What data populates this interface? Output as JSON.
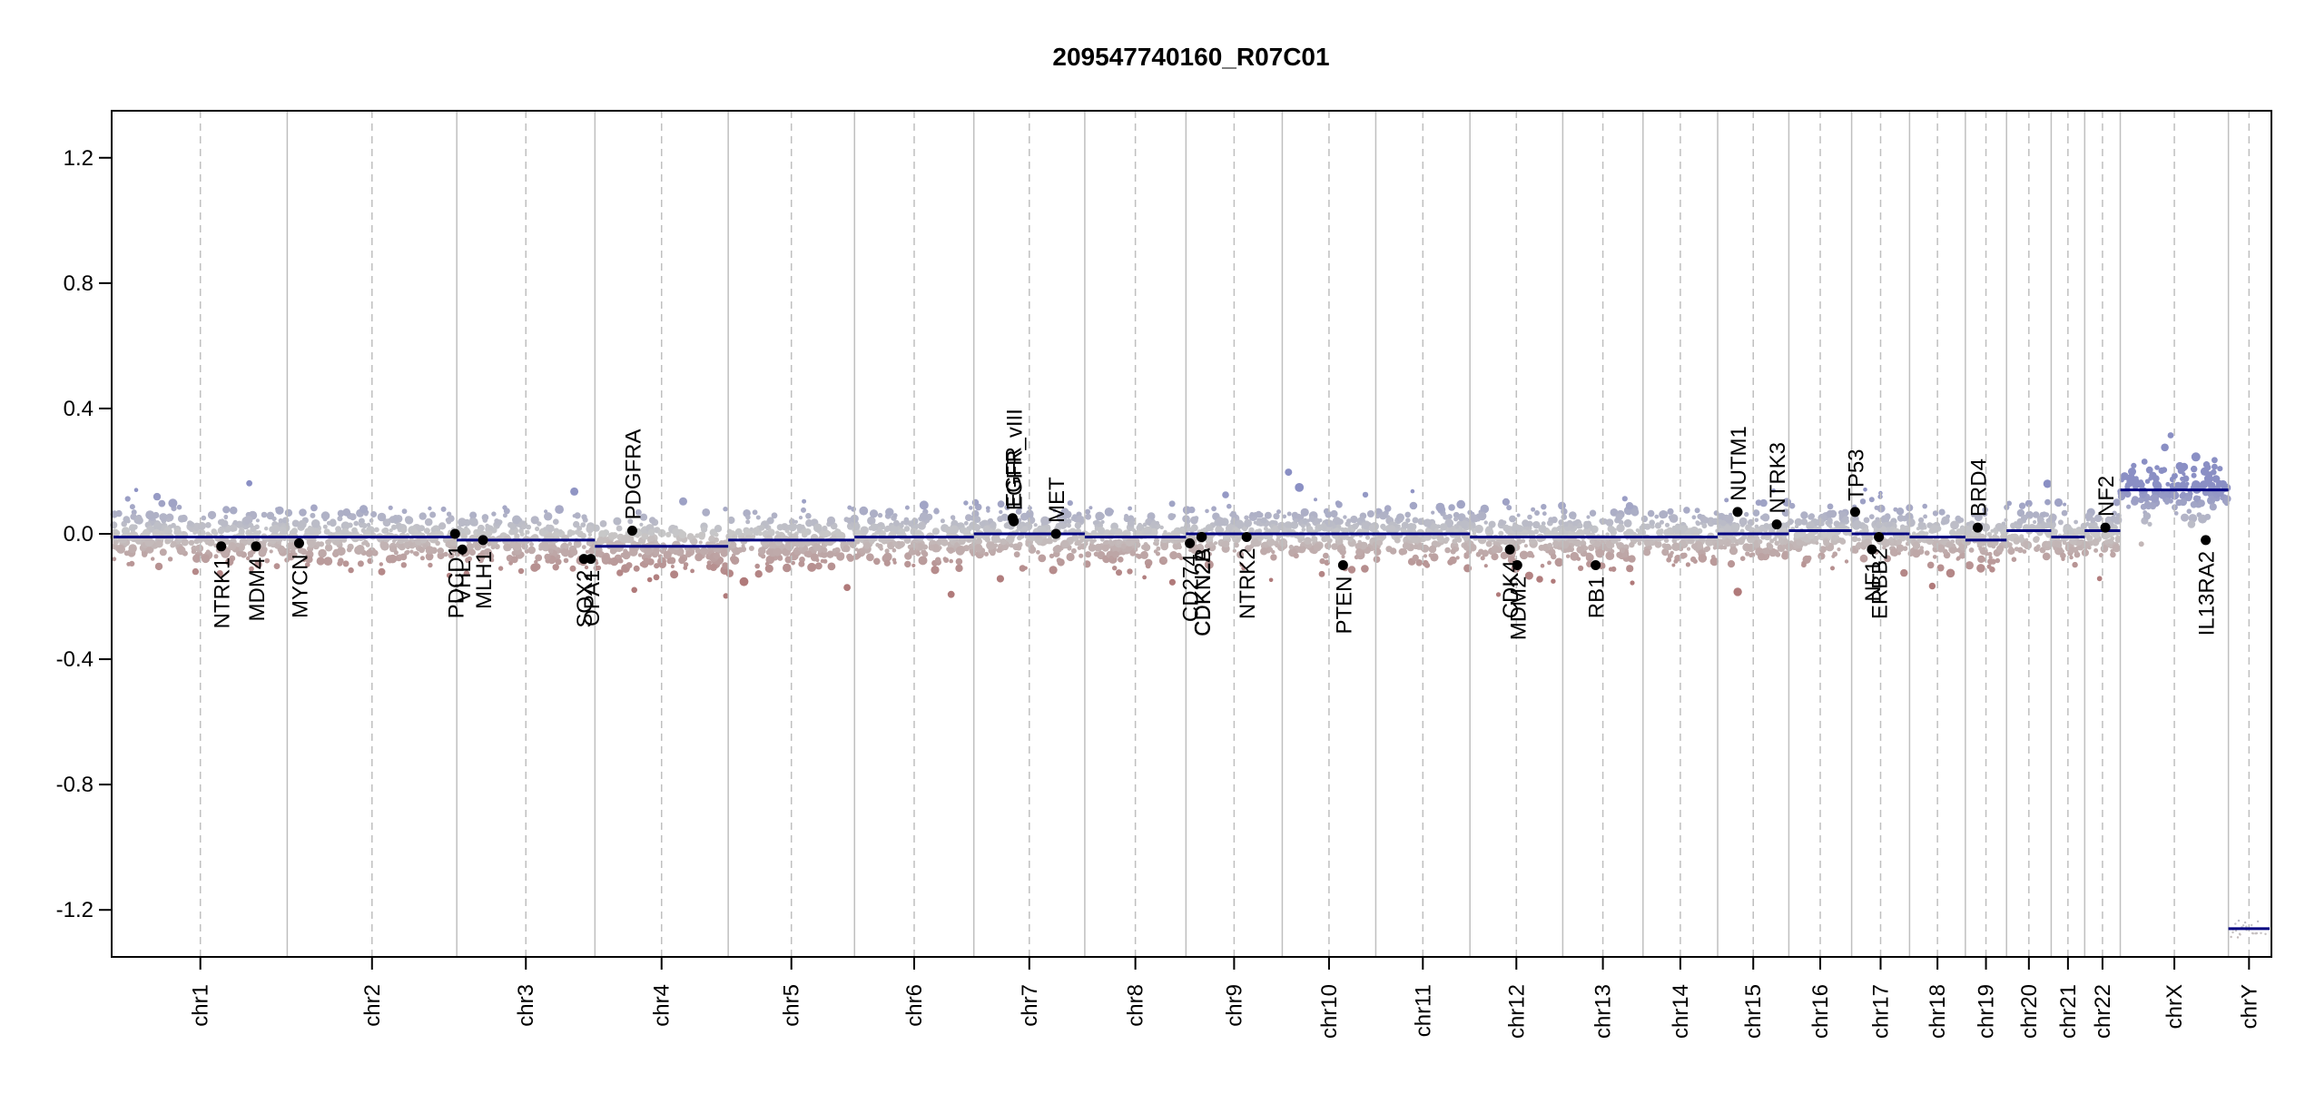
{
  "chart_data": {
    "type": "scatter",
    "title": "209547740160_R07C01",
    "xlabel": "",
    "ylabel": "",
    "ylim": [
      -1.35,
      1.35
    ],
    "yticks": [
      -1.2,
      -0.8,
      -0.4,
      0.0,
      0.4,
      0.8,
      1.2
    ],
    "ytick_labels": [
      "-1.2",
      "-0.8",
      "-0.4",
      "0.0",
      "0.4",
      "0.8",
      "1.2"
    ],
    "grid": false,
    "legend": "none",
    "colors": {
      "positive": "#8a8fc4",
      "neutral": "#c8c8c8",
      "negative": "#b07a7a",
      "segment": "#000080",
      "gene_point": "#000000",
      "boundary": "#bfbfbf"
    },
    "chromosomes": [
      {
        "name": "chr1",
        "size": 249,
        "segments": [
          {
            "from": 0,
            "to": 1,
            "value": -0.01
          }
        ]
      },
      {
        "name": "chr2",
        "size": 243,
        "segments": [
          {
            "from": 0,
            "to": 1,
            "value": -0.01
          }
        ]
      },
      {
        "name": "chr3",
        "size": 198,
        "segments": [
          {
            "from": 0,
            "to": 1,
            "value": -0.02
          }
        ]
      },
      {
        "name": "chr4",
        "size": 191,
        "segments": [
          {
            "from": 0,
            "to": 1,
            "value": -0.04
          }
        ]
      },
      {
        "name": "chr5",
        "size": 181,
        "segments": [
          {
            "from": 0,
            "to": 1,
            "value": -0.02
          }
        ]
      },
      {
        "name": "chr6",
        "size": 171,
        "segments": [
          {
            "from": 0,
            "to": 1,
            "value": -0.01
          }
        ]
      },
      {
        "name": "chr7",
        "size": 159,
        "segments": [
          {
            "from": 0,
            "to": 1,
            "value": 0.0
          }
        ]
      },
      {
        "name": "chr8",
        "size": 145,
        "segments": [
          {
            "from": 0,
            "to": 1,
            "value": -0.01
          }
        ]
      },
      {
        "name": "chr9",
        "size": 138,
        "segments": [
          {
            "from": 0,
            "to": 1,
            "value": 0.0
          }
        ]
      },
      {
        "name": "chr10",
        "size": 134,
        "segments": [
          {
            "from": 0,
            "to": 1,
            "value": 0.0
          }
        ]
      },
      {
        "name": "chr11",
        "size": 135,
        "segments": [
          {
            "from": 0,
            "to": 1,
            "value": 0.0
          }
        ]
      },
      {
        "name": "chr12",
        "size": 133,
        "segments": [
          {
            "from": 0,
            "to": 1,
            "value": -0.01
          }
        ]
      },
      {
        "name": "chr13",
        "size": 115,
        "segments": [
          {
            "from": 0,
            "to": 1,
            "value": -0.01
          }
        ]
      },
      {
        "name": "chr14",
        "size": 107,
        "segments": [
          {
            "from": 0,
            "to": 1,
            "value": -0.01
          }
        ]
      },
      {
        "name": "chr15",
        "size": 102,
        "segments": [
          {
            "from": 0,
            "to": 1,
            "value": 0.0
          }
        ]
      },
      {
        "name": "chr16",
        "size": 90,
        "segments": [
          {
            "from": 0,
            "to": 1,
            "value": 0.01
          }
        ]
      },
      {
        "name": "chr17",
        "size": 83,
        "segments": [
          {
            "from": 0,
            "to": 1,
            "value": 0.0
          }
        ]
      },
      {
        "name": "chr18",
        "size": 80,
        "segments": [
          {
            "from": 0,
            "to": 1,
            "value": -0.01
          }
        ]
      },
      {
        "name": "chr19",
        "size": 59,
        "segments": [
          {
            "from": 0,
            "to": 1,
            "value": -0.02
          }
        ]
      },
      {
        "name": "chr20",
        "size": 64,
        "segments": [
          {
            "from": 0,
            "to": 1,
            "value": 0.01
          }
        ]
      },
      {
        "name": "chr21",
        "size": 48,
        "segments": [
          {
            "from": 0,
            "to": 1,
            "value": -0.01
          }
        ]
      },
      {
        "name": "chr22",
        "size": 51,
        "segments": [
          {
            "from": 0,
            "to": 1,
            "value": 0.01
          }
        ]
      },
      {
        "name": "chrX",
        "size": 155,
        "segments": [
          {
            "from": 0,
            "to": 1,
            "value": 0.14
          }
        ]
      },
      {
        "name": "chrY",
        "size": 59,
        "segments": [
          {
            "from": 0,
            "to": 1,
            "value": -1.26
          }
        ]
      }
    ],
    "genes": [
      {
        "name": "NTRK1",
        "chr": "chr1",
        "pos": 0.62,
        "value": -0.04,
        "label": "below"
      },
      {
        "name": "MDM4",
        "chr": "chr1",
        "pos": 0.82,
        "value": -0.04,
        "label": "below"
      },
      {
        "name": "MYCN",
        "chr": "chr2",
        "pos": 0.07,
        "value": -0.03,
        "label": "below"
      },
      {
        "name": "PDCD1",
        "chr": "chr2",
        "pos": 0.99,
        "value": 0.0,
        "label": "below"
      },
      {
        "name": "VHL",
        "chr": "chr3",
        "pos": 0.04,
        "value": -0.05,
        "label": "below"
      },
      {
        "name": "MLH1",
        "chr": "chr3",
        "pos": 0.19,
        "value": -0.02,
        "label": "below"
      },
      {
        "name": "SOX2",
        "chr": "chr3",
        "pos": 0.92,
        "value": -0.08,
        "label": "below"
      },
      {
        "name": "OPA1",
        "chr": "chr3",
        "pos": 0.97,
        "value": -0.08,
        "label": "below"
      },
      {
        "name": "PDGFRA",
        "chr": "chr4",
        "pos": 0.28,
        "value": 0.01,
        "label": "above"
      },
      {
        "name": "EGFR",
        "chr": "chr7",
        "pos": 0.35,
        "value": 0.05,
        "label": "above"
      },
      {
        "name": "EGFR_vIII",
        "chr": "chr7",
        "pos": 0.36,
        "value": 0.04,
        "label": "above"
      },
      {
        "name": "MET",
        "chr": "chr7",
        "pos": 0.74,
        "value": 0.0,
        "label": "above"
      },
      {
        "name": "CD274",
        "chr": "chr9",
        "pos": 0.04,
        "value": -0.03,
        "label": "below"
      },
      {
        "name": "CDKN2A",
        "chr": "chr9",
        "pos": 0.16,
        "value": -0.01,
        "label": "below"
      },
      {
        "name": "CDKN2B",
        "chr": "chr9",
        "pos": 0.165,
        "value": -0.01,
        "label": "below"
      },
      {
        "name": "NTRK2",
        "chr": "chr9",
        "pos": 0.63,
        "value": -0.01,
        "label": "below"
      },
      {
        "name": "PTEN",
        "chr": "chr10",
        "pos": 0.65,
        "value": -0.1,
        "label": "below"
      },
      {
        "name": "CDK4",
        "chr": "chr12",
        "pos": 0.43,
        "value": -0.05,
        "label": "below"
      },
      {
        "name": "MDM2",
        "chr": "chr12",
        "pos": 0.51,
        "value": -0.1,
        "label": "below"
      },
      {
        "name": "RB1",
        "chr": "chr13",
        "pos": 0.41,
        "value": -0.1,
        "label": "below"
      },
      {
        "name": "NUTM1",
        "chr": "chr15",
        "pos": 0.28,
        "value": 0.07,
        "label": "above"
      },
      {
        "name": "NTRK3",
        "chr": "chr15",
        "pos": 0.83,
        "value": 0.03,
        "label": "above"
      },
      {
        "name": "TP53",
        "chr": "chr17",
        "pos": 0.06,
        "value": 0.07,
        "label": "above"
      },
      {
        "name": "NF1",
        "chr": "chr17",
        "pos": 0.35,
        "value": -0.05,
        "label": "below"
      },
      {
        "name": "ERBB2",
        "chr": "chr17",
        "pos": 0.47,
        "value": -0.01,
        "label": "below"
      },
      {
        "name": "BRD4",
        "chr": "chr19",
        "pos": 0.3,
        "value": 0.02,
        "label": "above"
      },
      {
        "name": "NF2",
        "chr": "chr22",
        "pos": 0.58,
        "value": 0.02,
        "label": "above"
      },
      {
        "name": "IL13RA2",
        "chr": "chrX",
        "pos": 0.79,
        "value": -0.02,
        "label": "below"
      }
    ]
  }
}
